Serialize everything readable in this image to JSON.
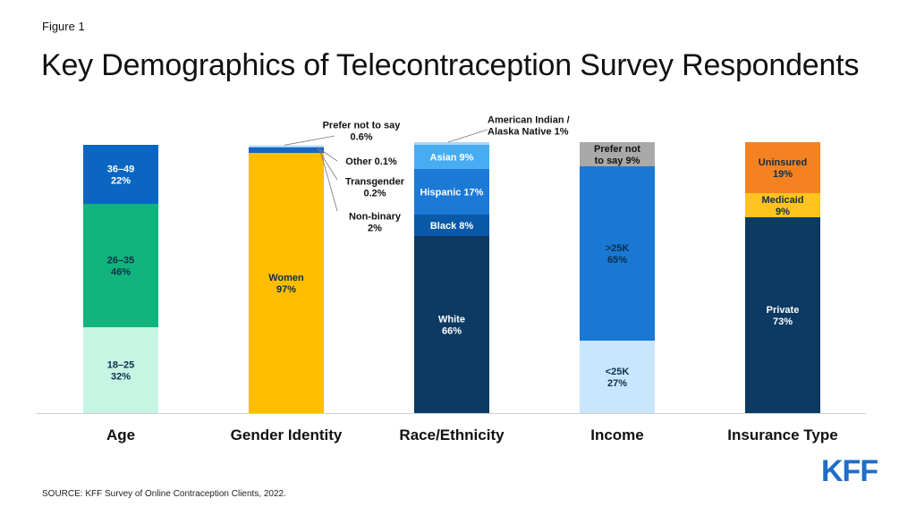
{
  "figure_label": "Figure 1",
  "title": "Key Demographics of Telecontraception Survey Respondents",
  "source": "SOURCE: KFF Survey of Online Contraception Clients, 2022.",
  "logo": {
    "text": "KFF",
    "color": "#1f6ec7"
  },
  "chart_data": {
    "type": "bar",
    "stacked": true,
    "ylim": [
      0,
      100
    ],
    "grid": false,
    "legend": "none",
    "categories": [
      "Age",
      "Gender Identity",
      "Race/Ethnicity",
      "Income",
      "Insurance Type"
    ],
    "stacks": [
      {
        "category": "Age",
        "segments": [
          {
            "label": [
              "18–25",
              "32%"
            ],
            "value": 32,
            "color": "#c6f5e3",
            "text_color": "#0b2f4a"
          },
          {
            "label": [
              "26–35",
              "46%"
            ],
            "value": 46,
            "color": "#10b47c",
            "text_color": "#0b2f4a"
          },
          {
            "label": [
              "36–49",
              "22%"
            ],
            "value": 22,
            "color": "#0a66c2",
            "text_color": "#ffffff"
          }
        ]
      },
      {
        "category": "Gender Identity",
        "segments": [
          {
            "label": [
              "Women",
              "97%"
            ],
            "value": 97,
            "color": "#ffbd00",
            "text_color": "#0b2f4a"
          },
          {
            "label": [
              "Non-binary",
              "2%"
            ],
            "value": 2,
            "color": "#1766c4",
            "text_color": "#111111",
            "callout": true
          },
          {
            "label": [
              "Transgender",
              "0.2%"
            ],
            "value": 0.2,
            "color": "#5a9ee6",
            "text_color": "#111111",
            "callout": true
          },
          {
            "label": [
              "Other 0.1%"
            ],
            "value": 0.1,
            "color": "#8fc5f5",
            "text_color": "#111111",
            "callout": true
          },
          {
            "label": [
              "Prefer not to say",
              "0.6%"
            ],
            "value": 0.6,
            "color": "#c7e4fb",
            "text_color": "#111111",
            "callout": true
          }
        ]
      },
      {
        "category": "Race/Ethnicity",
        "segments": [
          {
            "label": [
              "White",
              "66%"
            ],
            "value": 66,
            "color": "#0c3a63",
            "text_color": "#ffffff"
          },
          {
            "label": [
              "Black 8%"
            ],
            "value": 8,
            "color": "#0a58a8",
            "text_color": "#ffffff"
          },
          {
            "label": [
              "Hispanic 17%"
            ],
            "value": 17,
            "color": "#1a7ad6",
            "text_color": "#ffffff"
          },
          {
            "label": [
              "Asian 9%"
            ],
            "value": 9,
            "color": "#47acf2",
            "text_color": "#ffffff"
          },
          {
            "label": [
              "American Indian /",
              "Alaska Native 1%"
            ],
            "value": 1,
            "color": "#a8d8fa",
            "text_color": "#111111",
            "callout": true
          }
        ]
      },
      {
        "category": "Income",
        "segments": [
          {
            "label": [
              "<25K",
              "27%"
            ],
            "value": 27,
            "color": "#c9e6fd",
            "text_color": "#0b2f4a"
          },
          {
            "label": [
              ">25K",
              "65%"
            ],
            "value": 65,
            "color": "#1a78d5",
            "text_color": "#0b2f4a"
          },
          {
            "label": [
              "Prefer not",
              "to say 9%"
            ],
            "value": 9,
            "color": "#a9a9a9",
            "text_color": "#111111"
          }
        ]
      },
      {
        "category": "Insurance Type",
        "segments": [
          {
            "label": [
              "Private",
              "73%"
            ],
            "value": 73,
            "color": "#0c3a63",
            "text_color": "#ffffff"
          },
          {
            "label": [
              "Medicaid",
              "9%"
            ],
            "value": 9,
            "color": "#ffc320",
            "text_color": "#0b2f4a"
          },
          {
            "label": [
              "Uninsured",
              "19%"
            ],
            "value": 19,
            "color": "#f58220",
            "text_color": "#0b2f4a"
          }
        ]
      }
    ]
  }
}
